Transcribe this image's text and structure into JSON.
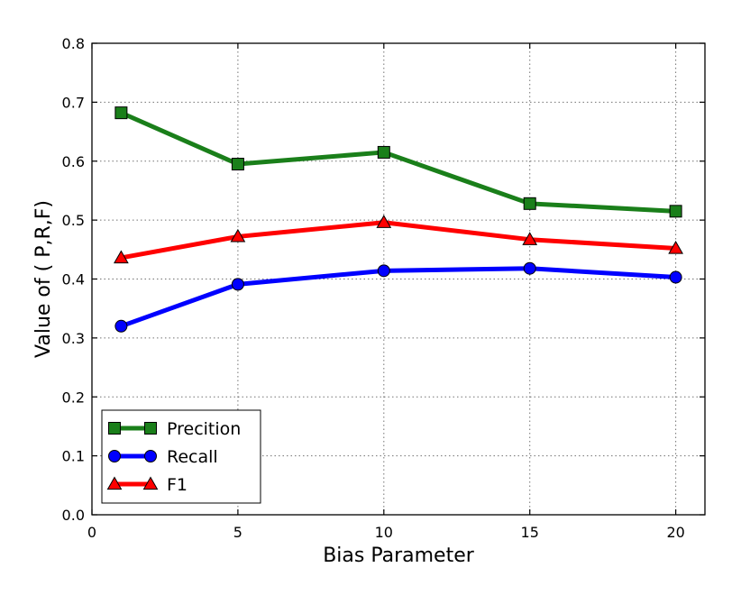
{
  "chart_data": {
    "type": "line",
    "x": [
      1,
      5,
      10,
      15,
      20
    ],
    "xlabel": "Bias Parameter",
    "ylabel": "Value of ( P,R,F)",
    "xlim": [
      0,
      21
    ],
    "ylim": [
      0.0,
      0.8
    ],
    "x_ticks": [
      0,
      5,
      10,
      15,
      20
    ],
    "x_tick_labels": [
      "0",
      "5",
      "10",
      "15",
      "20"
    ],
    "y_ticks": [
      0.0,
      0.1,
      0.2,
      0.3,
      0.4,
      0.5,
      0.6,
      0.7,
      0.8
    ],
    "y_tick_labels": [
      "0.0",
      "0.1",
      "0.2",
      "0.3",
      "0.4",
      "0.5",
      "0.6",
      "0.7",
      "0.8"
    ],
    "grid": true,
    "legend_position": "lower-left",
    "series": [
      {
        "name": "Precition",
        "values": [
          0.682,
          0.595,
          0.615,
          0.528,
          0.515
        ],
        "color": "#1a7f1a",
        "marker": "square"
      },
      {
        "name": "Recall",
        "values": [
          0.32,
          0.391,
          0.414,
          0.418,
          0.403
        ],
        "color": "#0000ff",
        "marker": "circle"
      },
      {
        "name": "F1",
        "values": [
          0.436,
          0.472,
          0.496,
          0.467,
          0.452
        ],
        "color": "#ff0000",
        "marker": "triangle"
      }
    ]
  }
}
